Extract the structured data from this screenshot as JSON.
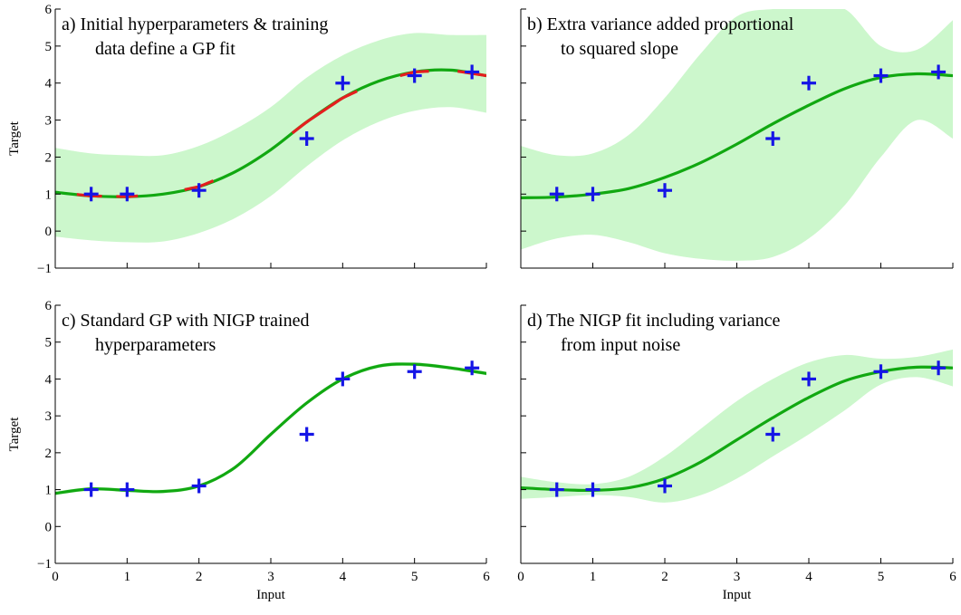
{
  "figure": {
    "colors": {
      "band": "#ccf7cc",
      "mean": "#11a811",
      "highlight": "#e41e1e",
      "marker": "#1515e6"
    }
  },
  "chart_data": [
    {
      "type": "line",
      "title_lines": [
        "a) Initial hyperparameters & training",
        "data define a GP fit"
      ],
      "xlabel": "",
      "ylabel": "Target",
      "xlim": [
        0,
        6
      ],
      "ylim": [
        -1,
        6
      ],
      "xticks": [
        "0",
        "1",
        "2",
        "3",
        "4",
        "5",
        "6"
      ],
      "yticks": [
        "−1",
        "0",
        "1",
        "2",
        "3",
        "4",
        "5",
        "6"
      ],
      "show_xticklabels": false,
      "show_yticklabels": true,
      "grid": false,
      "mean": {
        "x": [
          0,
          0.5,
          1,
          1.5,
          2,
          2.5,
          3,
          3.5,
          4,
          4.5,
          5,
          5.5,
          6
        ],
        "y": [
          1.05,
          0.95,
          0.93,
          1.0,
          1.2,
          1.6,
          2.2,
          2.95,
          3.6,
          4.05,
          4.3,
          4.35,
          4.2
        ]
      },
      "band": {
        "x": [
          0,
          0.5,
          1,
          1.5,
          2,
          2.5,
          3,
          3.5,
          4,
          4.5,
          5,
          5.5,
          6
        ],
        "lower": [
          -0.15,
          -0.25,
          -0.3,
          -0.28,
          -0.05,
          0.35,
          0.95,
          1.75,
          2.45,
          2.95,
          3.25,
          3.35,
          3.2
        ],
        "upper": [
          2.25,
          2.1,
          2.05,
          2.05,
          2.3,
          2.75,
          3.35,
          4.15,
          4.75,
          5.15,
          5.35,
          5.3,
          5.3
        ]
      },
      "highlights": [
        {
          "x": [
            0.3,
            0.65
          ]
        },
        {
          "x": [
            0.85,
            1.15
          ]
        },
        {
          "x": [
            1.8,
            2.2
          ]
        },
        {
          "x": [
            3.3,
            4.2
          ]
        },
        {
          "x": [
            4.8,
            5.2
          ]
        },
        {
          "x": [
            5.6,
            6.0
          ]
        }
      ],
      "points": {
        "x": [
          0.5,
          1,
          2,
          3.5,
          4,
          5,
          5.8
        ],
        "y": [
          1.0,
          1.0,
          1.1,
          2.5,
          4.0,
          4.2,
          4.3
        ]
      }
    },
    {
      "type": "line",
      "title_lines": [
        "b) Extra variance added proportional",
        "to squared slope"
      ],
      "xlabel": "",
      "ylabel": "",
      "xlim": [
        0,
        6
      ],
      "ylim": [
        -1,
        6
      ],
      "xticks": [
        "0",
        "1",
        "2",
        "3",
        "4",
        "5",
        "6"
      ],
      "yticks": [
        "−1",
        "0",
        "1",
        "2",
        "3",
        "4",
        "5",
        "6"
      ],
      "show_xticklabels": false,
      "show_yticklabels": false,
      "grid": false,
      "mean": {
        "x": [
          0,
          0.5,
          1,
          1.5,
          2,
          2.5,
          3,
          3.5,
          4,
          4.5,
          5,
          5.5,
          6
        ],
        "y": [
          0.9,
          0.92,
          1.0,
          1.15,
          1.45,
          1.85,
          2.35,
          2.9,
          3.4,
          3.85,
          4.15,
          4.25,
          4.2
        ]
      },
      "band": {
        "x": [
          0,
          0.5,
          1,
          1.5,
          2,
          2.5,
          3,
          3.5,
          4,
          4.5,
          5,
          5.5,
          6
        ],
        "lower": [
          -0.5,
          -0.2,
          -0.1,
          -0.3,
          -0.6,
          -0.75,
          -0.8,
          -0.7,
          -0.2,
          0.7,
          2.0,
          3.0,
          2.5
        ]
      },
      "band_upper": [
        2.3,
        2.05,
        2.1,
        2.6,
        3.6,
        4.8,
        5.8,
        6.0,
        6.0,
        6.0,
        5.0,
        4.9,
        5.7
      ],
      "highlights": [],
      "points": {
        "x": [
          0.5,
          1,
          2,
          3.5,
          4,
          5,
          5.8
        ],
        "y": [
          1.0,
          1.0,
          1.1,
          2.5,
          4.0,
          4.2,
          4.3
        ]
      }
    },
    {
      "type": "line",
      "title_lines": [
        "c) Standard GP with NIGP trained",
        "hyperparameters"
      ],
      "xlabel": "Input",
      "ylabel": "Target",
      "xlim": [
        0,
        6
      ],
      "ylim": [
        -1,
        6
      ],
      "xticks": [
        "0",
        "1",
        "2",
        "3",
        "4",
        "5",
        "6"
      ],
      "yticks": [
        "−1",
        "0",
        "1",
        "2",
        "3",
        "4",
        "5",
        "6"
      ],
      "show_xticklabels": true,
      "show_yticklabels": true,
      "grid": false,
      "mean": {
        "x": [
          0,
          0.5,
          1,
          1.5,
          2,
          2.5,
          3,
          3.5,
          4,
          4.5,
          5,
          5.5,
          6
        ],
        "y": [
          0.9,
          1.02,
          0.98,
          0.95,
          1.1,
          1.6,
          2.5,
          3.35,
          4.0,
          4.35,
          4.4,
          4.3,
          4.15
        ]
      },
      "band": {
        "x": [
          0,
          0.5,
          1,
          1.5,
          2,
          2.5,
          3,
          3.5,
          4,
          4.5,
          5,
          5.5,
          6
        ],
        "lower": [
          0.85,
          0.97,
          0.93,
          0.9,
          1.05,
          1.55,
          2.45,
          3.3,
          3.95,
          4.3,
          4.35,
          4.25,
          4.1
        ],
        "upper": [
          0.95,
          1.07,
          1.03,
          1.0,
          1.15,
          1.65,
          2.55,
          3.4,
          4.05,
          4.4,
          4.45,
          4.35,
          4.2
        ]
      },
      "highlights": [],
      "points": {
        "x": [
          0.5,
          1,
          2,
          3.5,
          4,
          5,
          5.8
        ],
        "y": [
          1.0,
          1.0,
          1.1,
          2.5,
          4.0,
          4.2,
          4.3
        ]
      }
    },
    {
      "type": "line",
      "title_lines": [
        "d) The NIGP fit including variance",
        "from input noise"
      ],
      "xlabel": "Input",
      "ylabel": "",
      "xlim": [
        0,
        6
      ],
      "ylim": [
        -1,
        6
      ],
      "xticks": [
        "0",
        "1",
        "2",
        "3",
        "4",
        "5",
        "6"
      ],
      "yticks": [
        "−1",
        "0",
        "1",
        "2",
        "3",
        "4",
        "5",
        "6"
      ],
      "show_xticklabels": true,
      "show_yticklabels": false,
      "grid": false,
      "mean": {
        "x": [
          0,
          0.5,
          1,
          1.5,
          2,
          2.5,
          3,
          3.5,
          4,
          4.5,
          5,
          5.5,
          6
        ],
        "y": [
          1.05,
          1.0,
          0.98,
          1.05,
          1.3,
          1.75,
          2.35,
          2.95,
          3.5,
          3.95,
          4.2,
          4.32,
          4.3
        ]
      },
      "band": {
        "x": [
          0,
          0.5,
          1,
          1.5,
          2,
          2.5,
          3,
          3.5,
          4,
          4.5,
          5,
          5.5,
          6
        ],
        "lower": [
          0.75,
          0.8,
          0.85,
          0.8,
          0.65,
          0.85,
          1.3,
          1.9,
          2.5,
          3.15,
          3.85,
          4.05,
          3.8
        ],
        "upper": [
          1.35,
          1.2,
          1.15,
          1.35,
          1.9,
          2.65,
          3.4,
          4.0,
          4.45,
          4.65,
          4.55,
          4.6,
          4.8
        ]
      },
      "highlights": [],
      "points": {
        "x": [
          0.5,
          1,
          2,
          3.5,
          4,
          5,
          5.8
        ],
        "y": [
          1.0,
          1.0,
          1.1,
          2.5,
          4.0,
          4.2,
          4.3
        ]
      }
    }
  ]
}
